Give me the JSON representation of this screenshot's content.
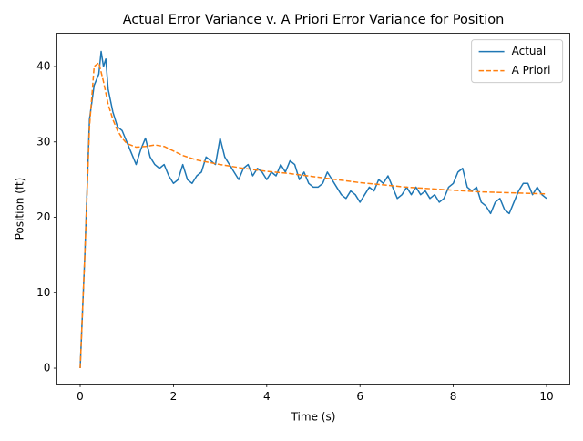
{
  "chart_data": {
    "type": "line",
    "title": "Actual Error Variance v. A Priori Error Variance for Position",
    "x_label": "Time (s)",
    "y_label": "Position (ft)",
    "xlim": [
      -0.5,
      10.5
    ],
    "ylim": [
      -2.1,
      44.4
    ],
    "xticks": [
      0,
      2,
      4,
      6,
      8,
      10
    ],
    "yticks": [
      0,
      10,
      20,
      30,
      40
    ],
    "grid": false,
    "legend": "upper right",
    "series": [
      {
        "name": "Actual",
        "color": "#1f77b4",
        "dash": "solid",
        "x": [
          0,
          0.1,
          0.2,
          0.3,
          0.4,
          0.45,
          0.5,
          0.55,
          0.6,
          0.7,
          0.8,
          0.9,
          1.0,
          1.1,
          1.2,
          1.3,
          1.4,
          1.5,
          1.6,
          1.7,
          1.8,
          1.9,
          2.0,
          2.1,
          2.2,
          2.3,
          2.4,
          2.5,
          2.6,
          2.7,
          2.8,
          2.9,
          3.0,
          3.1,
          3.2,
          3.3,
          3.4,
          3.5,
          3.6,
          3.7,
          3.8,
          3.9,
          4.0,
          4.1,
          4.2,
          4.3,
          4.4,
          4.5,
          4.6,
          4.7,
          4.8,
          4.9,
          5.0,
          5.1,
          5.2,
          5.3,
          5.4,
          5.5,
          5.6,
          5.7,
          5.8,
          5.9,
          6.0,
          6.1,
          6.2,
          6.3,
          6.4,
          6.5,
          6.6,
          6.7,
          6.8,
          6.9,
          7.0,
          7.1,
          7.2,
          7.3,
          7.4,
          7.5,
          7.6,
          7.7,
          7.8,
          7.9,
          8.0,
          8.1,
          8.2,
          8.3,
          8.4,
          8.5,
          8.6,
          8.7,
          8.8,
          8.9,
          9.0,
          9.1,
          9.2,
          9.3,
          9.4,
          9.5,
          9.6,
          9.7,
          9.8,
          9.9,
          10.0
        ],
        "values": [
          0,
          15,
          33,
          37.5,
          39,
          42,
          40,
          41,
          37,
          34,
          32,
          31.5,
          30,
          28.5,
          27,
          29,
          30.5,
          28,
          27,
          26.5,
          27,
          25.5,
          24.5,
          25,
          27,
          25,
          24.5,
          25.5,
          26,
          28,
          27.5,
          27,
          30.5,
          28,
          27,
          26,
          25,
          26.5,
          27,
          25.5,
          26.5,
          26,
          25,
          26,
          25.5,
          27,
          26,
          27.5,
          27,
          25,
          26,
          24.5,
          24,
          24,
          24.5,
          26,
          25,
          24,
          23,
          22.5,
          23.5,
          23,
          22,
          23,
          24,
          23.5,
          25,
          24.5,
          25.5,
          24,
          22.5,
          23,
          24,
          23,
          24,
          23,
          23.5,
          22.5,
          23,
          22,
          22.5,
          24,
          24.5,
          26,
          26.5,
          24,
          23.5,
          24,
          22,
          21.5,
          20.5,
          22,
          22.5,
          21,
          20.5,
          22,
          23.5,
          24.5,
          24.5,
          23,
          24,
          23,
          22.5
        ]
      },
      {
        "name": "A Priori",
        "color": "#ff7f0e",
        "dash": "dashed",
        "x": [
          0,
          0.1,
          0.2,
          0.3,
          0.4,
          0.5,
          0.6,
          0.7,
          0.8,
          0.9,
          1.0,
          1.2,
          1.4,
          1.6,
          1.8,
          2.0,
          2.2,
          2.5,
          3,
          3.5,
          4,
          4.5,
          5,
          5.5,
          6,
          6.5,
          7,
          7.5,
          8,
          8.5,
          9,
          9.5,
          10
        ],
        "values": [
          0,
          15,
          32,
          40,
          40.5,
          38,
          35,
          33,
          31.5,
          30.5,
          29.8,
          29.3,
          29.4,
          29.6,
          29.4,
          28.8,
          28.2,
          27.6,
          27,
          26.5,
          26.1,
          25.8,
          25.4,
          25,
          24.6,
          24.3,
          24,
          23.8,
          23.6,
          23.4,
          23.3,
          23.2,
          23.1
        ]
      }
    ]
  }
}
